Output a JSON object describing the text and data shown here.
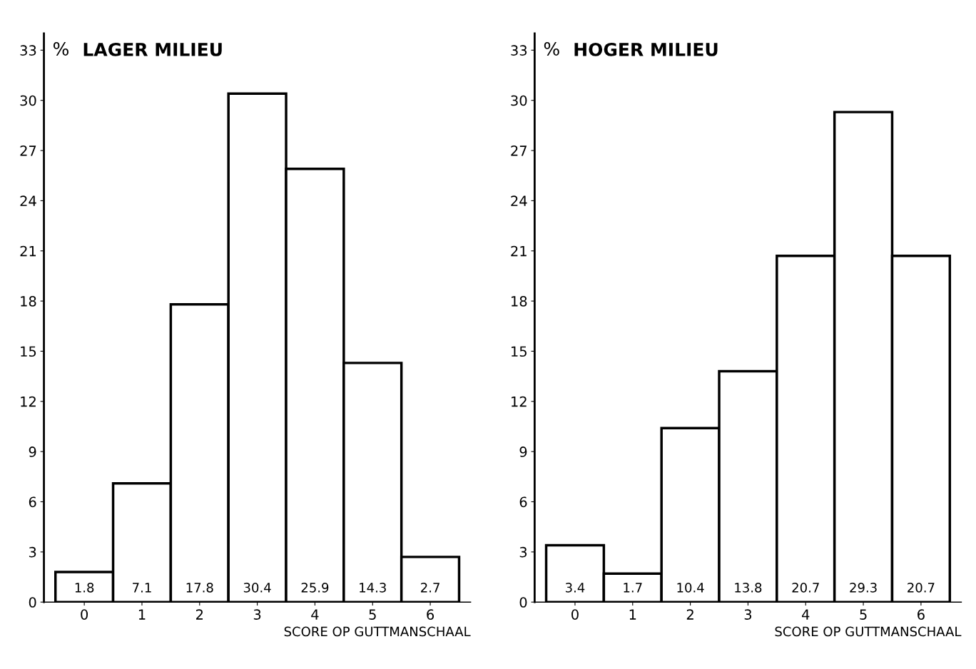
{
  "chart_data": [
    {
      "type": "bar",
      "title": "LAGER MILIEU",
      "ylabel": "%",
      "xlabel": "SCORE OP GUTTMANSCHAAL",
      "categories": [
        "0",
        "1",
        "2",
        "3",
        "4",
        "5",
        "6"
      ],
      "values": [
        1.8,
        7.1,
        17.8,
        30.4,
        25.9,
        14.3,
        2.7
      ],
      "color": "#ffffff",
      "ylim": [
        0,
        34
      ],
      "yticks": [
        0,
        3,
        6,
        9,
        12,
        15,
        18,
        21,
        24,
        27,
        30,
        33
      ],
      "data_labels": true,
      "grid": false,
      "legend": false
    },
    {
      "type": "bar",
      "title": "HOGER MILIEU",
      "ylabel": "%",
      "xlabel": "SCORE OP GUTTMANSCHAAL",
      "categories": [
        "0",
        "1",
        "2",
        "3",
        "4",
        "5",
        "6"
      ],
      "values": [
        3.4,
        1.7,
        10.4,
        13.8,
        20.7,
        29.3,
        20.7
      ],
      "color": "#ffffff",
      "ylim": [
        0,
        34
      ],
      "yticks": [
        0,
        3,
        6,
        9,
        12,
        15,
        18,
        21,
        24,
        27,
        30,
        33
      ],
      "data_labels": true,
      "grid": false,
      "legend": false
    }
  ]
}
